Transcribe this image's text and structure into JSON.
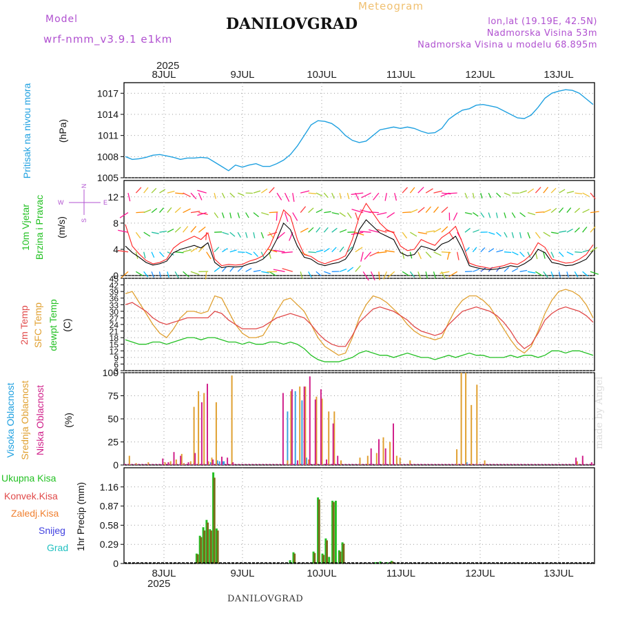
{
  "header": {
    "app_title": "Meteogram",
    "location": "DANILOVGRAD",
    "model_label": "Model",
    "model_name": "wrf-nmm_v3.9.1 e1km",
    "coords": "lon,lat (19.19E, 42.5N)",
    "altitude": "Nadmorska Visina 53m",
    "model_altitude": "Nadmorska Visina u modelu 68.895m",
    "footer": "DANILOVGRAD",
    "credit": "made by Angel"
  },
  "colors": {
    "pressure": "#1ea0e0",
    "temp2m": "#e04848",
    "sfc": "#e0a030",
    "dewpt": "#22c022",
    "high_cloud": "#3da0e0",
    "mid_cloud": "#e0a030",
    "low_cloud": "#d0208a",
    "total_precip": "#22c022",
    "conv_precip": "#e04848",
    "frozen": "#f08030",
    "snow": "#4040e0",
    "hail": "#20c0c0",
    "accent": "#b050d0"
  },
  "time_axis": {
    "year": "2025",
    "days": [
      "8JUL",
      "9JUL",
      "10JUL",
      "11JUL",
      "12JUL",
      "13JUL"
    ]
  },
  "wind_compass": {
    "north": "N",
    "south": "S",
    "east": "E",
    "west": "W"
  },
  "chart_data": [
    {
      "type": "line",
      "panel": "pressure",
      "ylabel_main": "Pritisak na nivou mora",
      "unit": "(hPa)",
      "yticks": [
        "1017",
        "1014",
        "1011",
        "1008",
        "1005"
      ],
      "ylim": [
        1005,
        1018.5
      ],
      "series": [
        {
          "values": [
            1008.0,
            1007.6,
            1007.7,
            1007.9,
            1008.2,
            1008.3,
            1008.1,
            1007.9,
            1007.6,
            1007.8,
            1007.8,
            1007.9,
            1007.8,
            1007.2,
            1006.6,
            1006.0,
            1006.8,
            1006.5,
            1006.8,
            1007.0,
            1006.6,
            1006.6,
            1007.0,
            1007.5,
            1008.3,
            1009.5,
            1011.0,
            1012.5,
            1013.1,
            1013.0,
            1012.7,
            1012.0,
            1011.0,
            1010.3,
            1010.0,
            1010.2,
            1011.0,
            1011.8,
            1012.0,
            1012.2,
            1012.0,
            1012.2,
            1012.0,
            1011.6,
            1011.3,
            1011.4,
            1012.0,
            1013.3,
            1014.0,
            1014.6,
            1014.8,
            1015.3,
            1015.4,
            1015.2,
            1015.0,
            1014.5,
            1014.0,
            1013.5,
            1013.4,
            1013.9,
            1015.0,
            1016.3,
            1017.0,
            1017.3,
            1017.5,
            1017.4,
            1017.0,
            1016.2,
            1015.4
          ]
        }
      ]
    },
    {
      "type": "line",
      "panel": "wind",
      "ylabel_main": "10m Vjetar",
      "ylabel_sub": "Brzina i Pravac",
      "unit": "(m/s)",
      "yticks": [
        "12",
        "8",
        "4",
        "0"
      ],
      "ylim": [
        0,
        14.5
      ],
      "series": [
        {
          "values": [
            4.5,
            3.5,
            2.8,
            2.0,
            1.6,
            1.8,
            2.2,
            3.5,
            4.0,
            4.3,
            4.6,
            4.2,
            5.0,
            2.0,
            1.2,
            1.4,
            1.3,
            1.4,
            1.8,
            2.0,
            2.5,
            3.5,
            5.5,
            8.0,
            7.0,
            4.5,
            2.8,
            2.5,
            1.8,
            1.5,
            1.8,
            2.0,
            2.5,
            4.0,
            7.0,
            8.5,
            7.5,
            6.5,
            6.0,
            5.5,
            3.5,
            3.0,
            3.2,
            4.5,
            4.2,
            3.8,
            4.8,
            5.2,
            6.0,
            4.0,
            1.5,
            1.2,
            1.0,
            0.9,
            1.0,
            1.2,
            1.5,
            1.3,
            1.8,
            2.5,
            4.0,
            3.5,
            2.0,
            1.8,
            1.5,
            1.6,
            2.0,
            2.5,
            3.8
          ]
        },
        {
          "values": [
            7.8,
            4.5,
            3.3,
            2.3,
            1.8,
            2.0,
            2.5,
            4.2,
            5.0,
            5.5,
            6.0,
            5.5,
            6.5,
            2.5,
            1.5,
            1.7,
            1.6,
            1.7,
            2.2,
            2.5,
            3.0,
            4.5,
            7.0,
            10.0,
            9.0,
            5.5,
            3.2,
            2.9,
            2.2,
            1.8,
            2.2,
            2.5,
            3.0,
            5.5,
            9.0,
            11.0,
            9.5,
            8.0,
            7.0,
            6.5,
            4.5,
            3.8,
            4.0,
            5.5,
            5.0,
            4.6,
            5.8,
            6.5,
            7.5,
            5.0,
            1.9,
            1.5,
            1.3,
            1.1,
            1.3,
            1.5,
            1.9,
            1.7,
            2.3,
            3.2,
            5.0,
            4.3,
            2.5,
            2.2,
            1.9,
            2.0,
            2.5,
            3.2,
            4.7
          ]
        }
      ],
      "arrow_rows_ms": [
        0,
        3,
        6,
        9,
        12
      ]
    },
    {
      "type": "line",
      "panel": "temperature",
      "ylabel_lines": [
        "2m Temp",
        "SFC Temp",
        "dewpt Temp"
      ],
      "unit": "(C)",
      "yticks": [
        "45",
        "42",
        "39",
        "36",
        "33",
        "30",
        "27",
        "24",
        "21",
        "18",
        "15",
        "12",
        "9",
        "6",
        "3"
      ],
      "ylim": [
        3,
        45
      ],
      "series": [
        {
          "name": "2m Temp",
          "values": [
            33,
            34,
            32,
            30,
            27,
            25,
            24,
            25,
            26,
            27,
            27,
            27,
            27,
            30,
            29,
            26,
            24,
            22,
            22,
            22,
            23,
            25,
            27,
            28,
            29,
            28,
            27,
            24,
            20,
            17,
            15,
            14,
            14,
            19,
            25,
            28,
            31,
            32,
            31,
            30,
            28,
            26,
            23,
            21,
            20,
            19,
            20,
            24,
            27,
            30,
            31,
            32,
            31,
            30,
            28,
            25,
            21,
            16,
            13,
            15,
            20,
            26,
            29,
            31,
            32,
            31,
            30,
            28,
            25
          ]
        },
        {
          "name": "SFC Temp",
          "values": [
            38,
            39,
            34,
            29,
            24,
            20,
            18,
            22,
            27,
            30,
            30,
            29,
            30,
            37,
            36,
            30,
            24,
            20,
            18,
            18,
            19,
            24,
            30,
            35,
            36,
            33,
            30,
            24,
            18,
            14,
            12,
            10,
            11,
            18,
            27,
            33,
            37,
            36,
            34,
            31,
            28,
            24,
            21,
            19,
            18,
            17,
            18,
            25,
            31,
            35,
            37,
            37,
            35,
            32,
            27,
            22,
            17,
            13,
            11,
            14,
            21,
            29,
            35,
            39,
            40,
            39,
            37,
            33,
            27
          ]
        },
        {
          "name": "dewpt Temp",
          "values": [
            17,
            16,
            15,
            15,
            16,
            16,
            15,
            16,
            17,
            18,
            18,
            17,
            18,
            18,
            17,
            16,
            16,
            15,
            16,
            15,
            15,
            16,
            16,
            15,
            16,
            15,
            13,
            10,
            8,
            7,
            7,
            7,
            8,
            9,
            11,
            12,
            11,
            10,
            10,
            9,
            10,
            11,
            10,
            9,
            9,
            8,
            9,
            10,
            9,
            10,
            11,
            10,
            10,
            9,
            9,
            9,
            10,
            9,
            10,
            10,
            9,
            10,
            12,
            12,
            11,
            12,
            12,
            11,
            10
          ]
        }
      ]
    },
    {
      "type": "bar",
      "panel": "clouds",
      "ylabel_lines": [
        "Visoka Oblacnost",
        "Srednja Oblacnost",
        "Niska Oblacnost"
      ],
      "unit": "(%)",
      "yticks": [
        "100",
        "75",
        "50",
        "25",
        "0"
      ],
      "ylim": [
        0,
        100
      ],
      "series": [
        {
          "name": "Visoka Oblacnost",
          "values": [
            [
              65,
              3
            ],
            [
              73,
              5
            ],
            [
              76,
              3
            ],
            [
              78,
              3
            ],
            [
              82,
              5
            ],
            [
              84,
              4
            ],
            [
              87,
              4
            ],
            [
              88,
              4
            ],
            [
              145,
              58
            ],
            [
              152,
              80
            ],
            [
              158,
              70
            ],
            [
              162,
              8
            ],
            [
              220,
              2
            ],
            [
              305,
              2
            ],
            [
              306,
              3
            ]
          ]
        },
        {
          "name": "Srednja Oblacnost",
          "values": [
            [
              3,
              10
            ],
            [
              9,
              2
            ],
            [
              20,
              3
            ],
            [
              35,
              3
            ],
            [
              38,
              3
            ],
            [
              40,
              4
            ],
            [
              45,
              6
            ],
            [
              50,
              12
            ],
            [
              52,
              2
            ],
            [
              58,
              4
            ],
            [
              61,
              63
            ],
            [
              65,
              80
            ],
            [
              70,
              78
            ],
            [
              74,
              4
            ],
            [
              77,
              8
            ],
            [
              81,
              68
            ],
            [
              95,
              97
            ],
            [
              145,
              5
            ],
            [
              148,
              80
            ],
            [
              156,
              85
            ],
            [
              161,
              85
            ],
            [
              164,
              6
            ],
            [
              171,
              74
            ],
            [
              176,
              72
            ],
            [
              182,
              58
            ],
            [
              187,
              58
            ],
            [
              193,
              5
            ],
            [
              210,
              8
            ],
            [
              217,
              10
            ],
            [
              225,
              13
            ],
            [
              231,
              30
            ],
            [
              237,
              25
            ],
            [
              243,
              10
            ],
            [
              246,
              8
            ],
            [
              255,
              5
            ],
            [
              297,
              17
            ],
            [
              301,
              100
            ],
            [
              305,
              100
            ],
            [
              310,
              65
            ],
            [
              315,
              87
            ],
            [
              322,
              5
            ],
            [
              405,
              4
            ],
            [
              410,
              5
            ]
          ]
        },
        {
          "name": "Niska Oblacnost",
          "values": [
            [
              33,
              7
            ],
            [
              38,
              3
            ],
            [
              43,
              14
            ],
            [
              49,
              10
            ],
            [
              56,
              3
            ],
            [
              62,
              13
            ],
            [
              68,
              68
            ],
            [
              73,
              88
            ],
            [
              78,
              6
            ],
            [
              86,
              9
            ],
            [
              91,
              8
            ],
            [
              96,
              3
            ],
            [
              141,
              78
            ],
            [
              149,
              82
            ],
            [
              154,
              5
            ],
            [
              160,
              85
            ],
            [
              165,
              96
            ],
            [
              170,
              71
            ],
            [
              175,
              82
            ],
            [
              180,
              6
            ],
            [
              186,
              45
            ],
            [
              190,
              10
            ],
            [
              220,
              18
            ],
            [
              227,
              28
            ],
            [
              233,
              18
            ],
            [
              240,
              45
            ],
            [
              404,
              8
            ],
            [
              410,
              10
            ],
            [
              418,
              3
            ]
          ]
        }
      ]
    },
    {
      "type": "bar",
      "panel": "precipitation",
      "ylabel_lines": [
        "Ukupna Kisa",
        "Konvek.Kisa",
        "Zaledj.Kisa",
        "Snijeg",
        "Grad"
      ],
      "ylabel_side": "1hr Precip (mm)",
      "yticks": [
        "1.16",
        "0.87",
        "0.58",
        "0.29",
        "0"
      ],
      "ylim": [
        0,
        1.45
      ],
      "series": [
        {
          "name": "Ukupna Kisa",
          "values": [
            [
              63,
              0.15
            ],
            [
              66,
              0.42
            ],
            [
              69,
              0.55
            ],
            [
              72,
              0.66
            ],
            [
              75,
              0.52
            ],
            [
              78,
              1.38
            ],
            [
              81,
              0.53
            ],
            [
              147,
              0.05
            ],
            [
              150,
              0.17
            ],
            [
              168,
              0.18
            ],
            [
              172,
              1.0
            ],
            [
              176,
              0.15
            ],
            [
              179,
              0.38
            ],
            [
              182,
              0.1
            ],
            [
              185,
              0.95
            ],
            [
              188,
              0.95
            ],
            [
              191,
              0.2
            ],
            [
              194,
              0.32
            ],
            [
              224,
              0.02
            ],
            [
              228,
              0.03
            ],
            [
              234,
              0.02
            ],
            [
              238,
              0.04
            ]
          ]
        },
        {
          "name": "Konvek.Kisa",
          "values": [
            [
              64,
              0.14
            ],
            [
              67,
              0.4
            ],
            [
              70,
              0.5
            ],
            [
              73,
              0.62
            ],
            [
              76,
              0.5
            ],
            [
              79,
              1.3
            ],
            [
              82,
              0.5
            ],
            [
              151,
              0.15
            ],
            [
              169,
              0.16
            ],
            [
              173,
              0.97
            ],
            [
              177,
              0.13
            ],
            [
              180,
              0.35
            ],
            [
              186,
              0.93
            ],
            [
              192,
              0.18
            ],
            [
              195,
              0.3
            ],
            [
              239,
              0.03
            ]
          ]
        }
      ]
    }
  ]
}
